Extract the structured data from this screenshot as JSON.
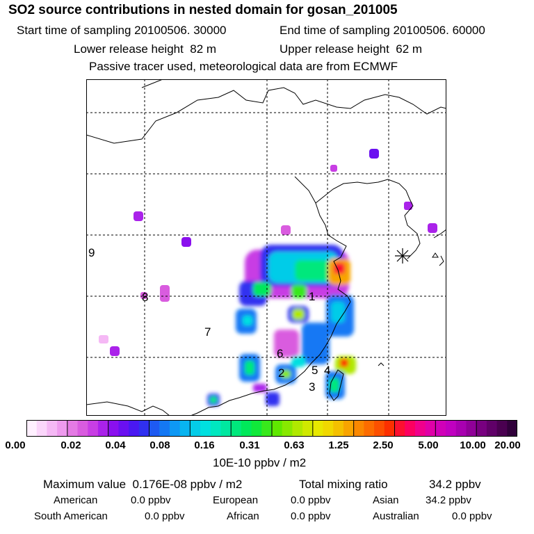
{
  "title": "SO2 source contributions in nested domain for gosan_201005",
  "sampling": {
    "start_label": "Start time of sampling",
    "start_value": "20100506. 30000",
    "end_label": "End time of sampling",
    "end_value": "20100506. 60000"
  },
  "release": {
    "lower_label": "Lower release height",
    "lower_value": "82 m",
    "upper_label": "Upper release height",
    "upper_value": "62 m"
  },
  "note": "Passive tracer used, meteorological data are from ECMWF",
  "region_labels": [
    "1",
    "2",
    "3",
    "4",
    "5",
    "6",
    "7",
    "8",
    "9"
  ],
  "colorbar": {
    "tick_labels": [
      "0.00",
      "0.02",
      "0.04",
      "0.08",
      "0.16",
      "0.31",
      "0.63",
      "1.25",
      "2.50",
      "5.00",
      "10.00",
      "20.00"
    ],
    "colors": [
      "#fff0ff",
      "#fbd6fb",
      "#f5b8f5",
      "#ee9aee",
      "#e47ae4",
      "#d95cdf",
      "#c83ee4",
      "#aa22ea",
      "#8a10ee",
      "#6a10f0",
      "#4a18f2",
      "#3030f0",
      "#1e5af2",
      "#1478f4",
      "#0e98f4",
      "#08b4f0",
      "#04cce8",
      "#00e0e0",
      "#00e8c0",
      "#00e8a0",
      "#00e87c",
      "#00e85a",
      "#10e83a",
      "#38e81c",
      "#60e800",
      "#88e800",
      "#b0e800",
      "#d0e800",
      "#e8e800",
      "#f0d800",
      "#f4c000",
      "#f8a400",
      "#fa8800",
      "#fc6c00",
      "#fc5000",
      "#fc3000",
      "#fc1030",
      "#fc0060",
      "#f0008c",
      "#e000a8",
      "#d000b8",
      "#c000c0",
      "#a800b0",
      "#900098",
      "#780080",
      "#600068",
      "#4a0050",
      "#30003a"
    ],
    "units": "10E-10 ppbv / m2"
  },
  "summary": {
    "max_label": "Maximum value",
    "max_value": "0.176E-08 ppbv / m2",
    "total_label": "Total mixing ratio",
    "total_value": "34.2 ppbv",
    "rows": [
      [
        {
          "name": "American",
          "value": "0.0 ppbv"
        },
        {
          "name": "European",
          "value": "0.0 ppbv"
        },
        {
          "name": "Asian",
          "value": "34.2 ppbv"
        }
      ],
      [
        {
          "name": "South American",
          "value": "0.0 ppbv"
        },
        {
          "name": "African",
          "value": "0.0 ppbv"
        },
        {
          "name": "Australian",
          "value": "0.0 ppbv"
        }
      ]
    ]
  }
}
